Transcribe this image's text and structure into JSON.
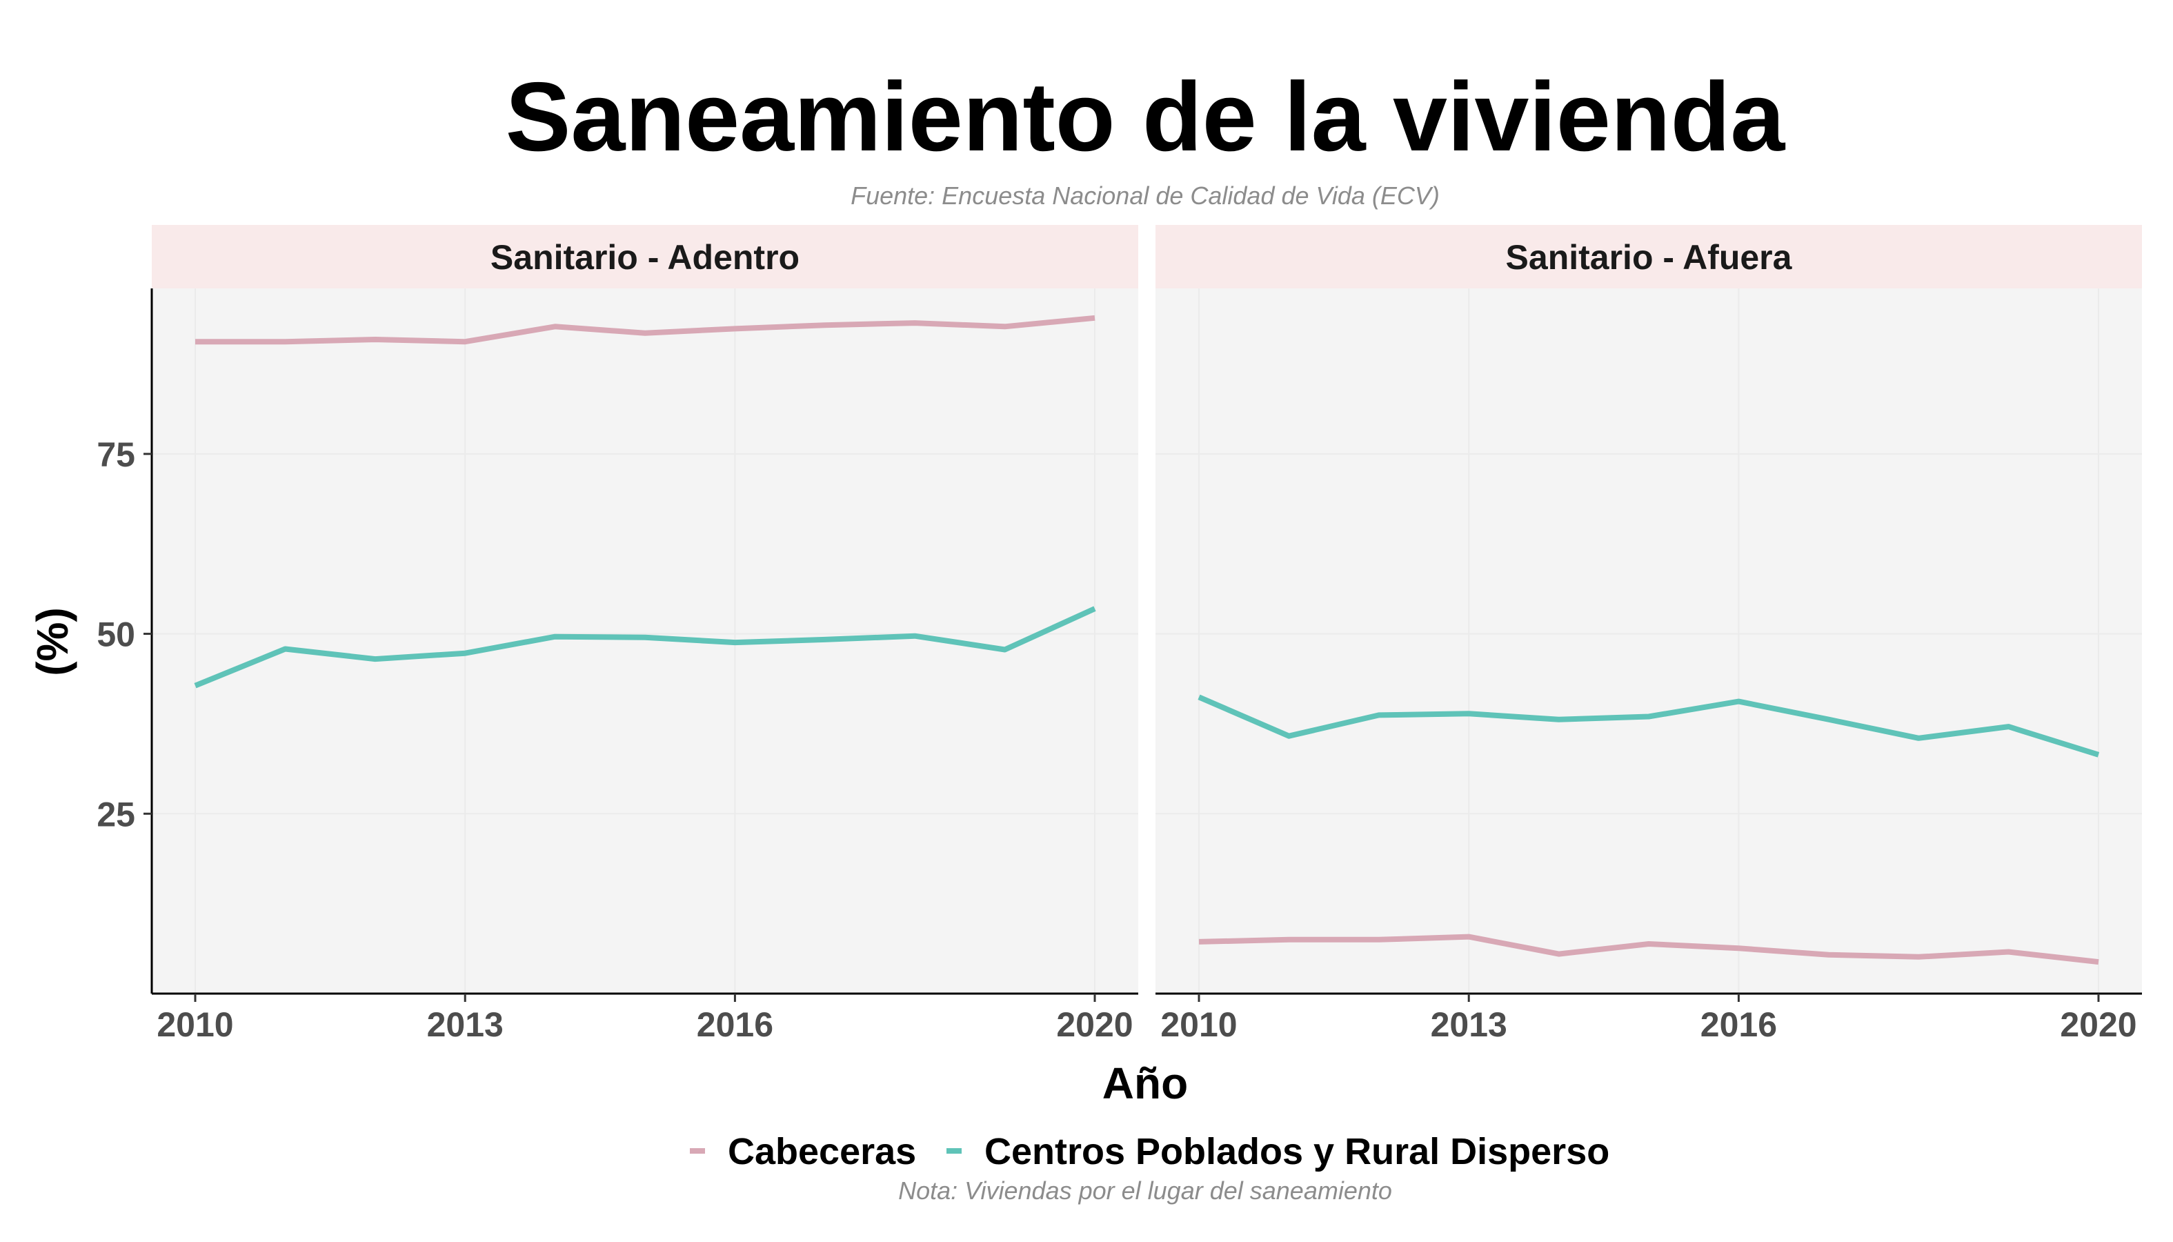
{
  "chart_data": {
    "type": "line",
    "title": "Saneamiento de la vivienda",
    "subtitle": "Fuente: Encuesta Nacional de Calidad de Vida (ECV)",
    "caption": "Nota: Viviendas por el lugar del saneamiento",
    "xlabel": "Año",
    "ylabel": "(%)",
    "xlim": [
      2010,
      2020
    ],
    "ylim": [
      0,
      98
    ],
    "x_ticks": [
      2010,
      2013,
      2016,
      2020
    ],
    "y_ticks": [
      25,
      50,
      75
    ],
    "grid": true,
    "legend_position": "bottom",
    "legend": [
      "Cabeceras",
      "Centros Poblados y Rural Disperso"
    ],
    "colors": {
      "Cabeceras": "#d8a8b5",
      "Centros Poblados y Rural Disperso": "#5fc3b8"
    },
    "x": [
      2010,
      2011,
      2012,
      2013,
      2014,
      2015,
      2016,
      2017,
      2018,
      2019,
      2020
    ],
    "panels": [
      {
        "title": "Sanitario - Adentro",
        "series": [
          {
            "name": "Cabeceras",
            "values": [
              90.6,
              90.6,
              90.9,
              90.6,
              92.7,
              91.8,
              92.4,
              92.9,
              93.2,
              92.7,
              93.9
            ]
          },
          {
            "name": "Centros Poblados y Rural Disperso",
            "values": [
              42.8,
              47.9,
              46.5,
              47.3,
              49.6,
              49.5,
              48.8,
              49.2,
              49.7,
              47.8,
              53.5
            ]
          }
        ]
      },
      {
        "title": "Sanitario - Afuera",
        "series": [
          {
            "name": "Cabeceras",
            "values": [
              7.2,
              7.5,
              7.5,
              7.9,
              5.5,
              6.9,
              6.3,
              5.4,
              5.1,
              5.8,
              4.4
            ]
          },
          {
            "name": "Centros Poblados y Rural Disperso",
            "values": [
              41.2,
              35.8,
              38.7,
              38.9,
              38.1,
              38.5,
              40.6,
              38.1,
              35.5,
              37.1,
              33.2
            ]
          }
        ]
      }
    ]
  }
}
